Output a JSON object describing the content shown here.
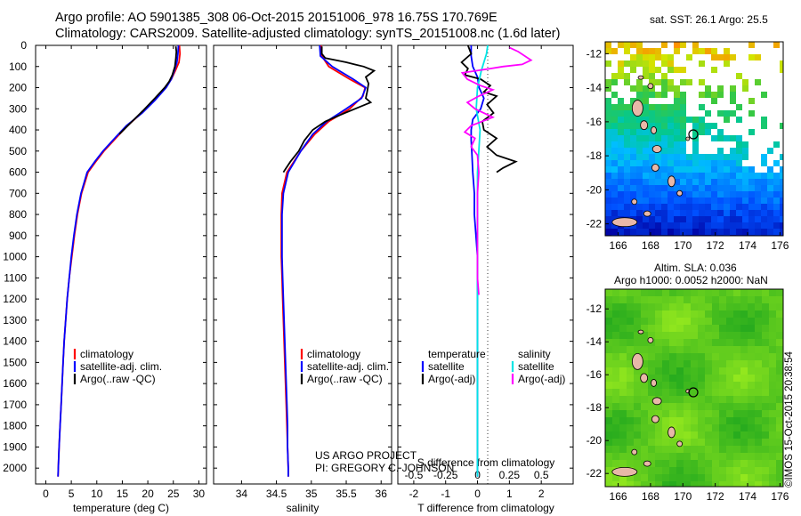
{
  "header": {
    "line1": "Argo profile: AO 5901385_308 06-Oct-2015 20151006_978 16.75S 170.769E",
    "line2": "Climatology: CARS2009. Satellite-adjusted climatology: synTS_20151008.nc (1.6d later)"
  },
  "map_top": {
    "title": "sat. SST: 26.1  Argo: 25.5",
    "xticks": [
      "166",
      "168",
      "170",
      "172",
      "174",
      "176"
    ],
    "yticks": [
      "-12",
      "-14",
      "-16",
      "-18",
      "-20",
      "-22"
    ]
  },
  "map_bottom": {
    "title_line1": "Altim. SLA: 0.036",
    "title_line2": "Argo h1000: 0.0052 h2000: NaN",
    "xticks": [
      "166",
      "168",
      "170",
      "172",
      "174",
      "176"
    ],
    "yticks": [
      "-12",
      "-14",
      "-16",
      "-18",
      "-20",
      "-22"
    ]
  },
  "credit": {
    "line1": "US ARGO PROJECT",
    "line2": "PI: GREGORY C. JOHNSON"
  },
  "stamp": "©IMOS 15-Oct-2015 20:38:54",
  "colors": {
    "climatology": "#ff0000",
    "satellite": "#0000ff",
    "argo": "#000000",
    "sal_sat": "#00e5e5",
    "sal_argo": "#ff00ff"
  },
  "chart_data": [
    {
      "type": "line",
      "xlabel": "temperature (deg C)",
      "ylabel": "",
      "xlim": [
        -2,
        31.5
      ],
      "ylim": [
        2075,
        0
      ],
      "xticks": [
        "0",
        "5",
        "10",
        "15",
        "20",
        "25",
        "30"
      ],
      "yticks": [
        "0",
        "100",
        "200",
        "300",
        "400",
        "500",
        "600",
        "700",
        "800",
        "900",
        "1000",
        "1100",
        "1200",
        "1300",
        "1400",
        "1500",
        "1600",
        "1700",
        "1800",
        "1900",
        "2000"
      ],
      "legend": [
        "climatology",
        "satellite-adj. clim.",
        "Argo(..raw -QC)"
      ],
      "series": [
        {
          "name": "climatology",
          "points": [
            [
              26.2,
              0
            ],
            [
              26.3,
              40
            ],
            [
              26.1,
              80
            ],
            [
              25.4,
              120
            ],
            [
              24.6,
              160
            ],
            [
              23.5,
              200
            ],
            [
              21.2,
              260
            ],
            [
              18.8,
              320
            ],
            [
              16,
              380
            ],
            [
              13.7,
              440
            ],
            [
              11.4,
              500
            ],
            [
              9.8,
              550
            ],
            [
              8.3,
              600
            ],
            [
              7,
              700
            ],
            [
              6.2,
              800
            ],
            [
              5.6,
              900
            ],
            [
              5.1,
              1000
            ],
            [
              4.6,
              1100
            ],
            [
              4.2,
              1200
            ],
            [
              3.9,
              1300
            ],
            [
              3.6,
              1400
            ],
            [
              3.4,
              1500
            ],
            [
              3.2,
              1600
            ],
            [
              3,
              1700
            ],
            [
              2.8,
              1800
            ],
            [
              2.6,
              1900
            ],
            [
              2.45,
              2000
            ],
            [
              2.4,
              2040
            ]
          ]
        },
        {
          "name": "satellite-adj. clim.",
          "points": [
            [
              26,
              0
            ],
            [
              25.9,
              40
            ],
            [
              25.7,
              80
            ],
            [
              25.2,
              120
            ],
            [
              24.6,
              160
            ],
            [
              23.6,
              200
            ],
            [
              21.4,
              260
            ],
            [
              18.9,
              320
            ],
            [
              15.8,
              380
            ],
            [
              13.5,
              440
            ],
            [
              11.2,
              500
            ],
            [
              9.6,
              550
            ],
            [
              8.1,
              600
            ],
            [
              6.9,
              700
            ],
            [
              6.1,
              800
            ],
            [
              5.5,
              900
            ],
            [
              5,
              1000
            ],
            [
              4.6,
              1100
            ],
            [
              4.2,
              1200
            ],
            [
              3.9,
              1300
            ],
            [
              3.6,
              1400
            ],
            [
              3.4,
              1500
            ],
            [
              3.2,
              1600
            ],
            [
              3,
              1700
            ],
            [
              2.8,
              1800
            ],
            [
              2.6,
              1900
            ],
            [
              2.45,
              2000
            ],
            [
              2.4,
              2040
            ]
          ]
        },
        {
          "name": "Argo(..raw -QC)",
          "points": [
            [
              25.5,
              5
            ],
            [
              25.6,
              30
            ],
            [
              25.5,
              60
            ],
            [
              25.3,
              100
            ],
            [
              24.8,
              140
            ],
            [
              24.2,
              170
            ],
            [
              23.3,
              200
            ],
            [
              21.4,
              250
            ],
            [
              19,
              310
            ],
            [
              16.5,
              370
            ],
            [
              14.4,
              420
            ]
          ]
        }
      ]
    },
    {
      "type": "line",
      "xlabel": "salinity",
      "ylabel": "",
      "xlim": [
        33.6,
        36.15
      ],
      "ylim": [
        2075,
        0
      ],
      "xticks": [
        "34",
        "34.5",
        "35",
        "35.5",
        "36"
      ],
      "legend": [
        "climatology",
        "satellite-adj. clim.",
        "Argo(..raw -QC)"
      ],
      "series": [
        {
          "name": "climatology",
          "points": [
            [
              35.14,
              0
            ],
            [
              35.15,
              50
            ],
            [
              35.25,
              100
            ],
            [
              35.55,
              160
            ],
            [
              35.77,
              200
            ],
            [
              35.74,
              240
            ],
            [
              35.55,
              300
            ],
            [
              35.25,
              360
            ],
            [
              35.05,
              420
            ],
            [
              34.85,
              500
            ],
            [
              34.65,
              600
            ],
            [
              34.58,
              700
            ],
            [
              34.57,
              800
            ],
            [
              34.57,
              900
            ],
            [
              34.57,
              1000
            ],
            [
              34.58,
              1100
            ],
            [
              34.59,
              1200
            ],
            [
              34.6,
              1300
            ],
            [
              34.61,
              1400
            ],
            [
              34.62,
              1500
            ],
            [
              34.63,
              1600
            ],
            [
              34.64,
              1700
            ],
            [
              34.65,
              1800
            ],
            [
              34.66,
              1900
            ],
            [
              34.67,
              2000
            ],
            [
              34.67,
              2040
            ]
          ]
        },
        {
          "name": "satellite-adj. clim.",
          "points": [
            [
              35.12,
              0
            ],
            [
              35.13,
              50
            ],
            [
              35.3,
              100
            ],
            [
              35.6,
              160
            ],
            [
              35.78,
              200
            ],
            [
              35.72,
              250
            ],
            [
              35.5,
              300
            ],
            [
              35.22,
              360
            ],
            [
              35.02,
              420
            ],
            [
              34.85,
              500
            ],
            [
              34.67,
              600
            ],
            [
              34.6,
              700
            ],
            [
              34.58,
              800
            ],
            [
              34.58,
              900
            ],
            [
              34.58,
              1000
            ],
            [
              34.59,
              1100
            ],
            [
              34.6,
              1200
            ],
            [
              34.61,
              1300
            ],
            [
              34.62,
              1400
            ],
            [
              34.63,
              1500
            ],
            [
              34.64,
              1600
            ],
            [
              34.65,
              1700
            ],
            [
              34.66,
              1800
            ],
            [
              34.66,
              1900
            ],
            [
              34.67,
              2000
            ],
            [
              34.67,
              2040
            ]
          ]
        },
        {
          "name": "Argo(..raw -QC)",
          "points": [
            [
              35.15,
              5
            ],
            [
              35.15,
              40
            ],
            [
              35.2,
              60
            ],
            [
              35.35,
              70
            ],
            [
              35.5,
              80
            ],
            [
              35.62,
              90
            ],
            [
              35.75,
              100
            ],
            [
              35.9,
              120
            ],
            [
              35.78,
              150
            ],
            [
              35.82,
              180
            ],
            [
              35.8,
              220
            ],
            [
              35.78,
              250
            ],
            [
              35.85,
              270
            ],
            [
              35.7,
              290
            ],
            [
              35.48,
              320
            ],
            [
              35.2,
              360
            ],
            [
              35.02,
              400
            ],
            [
              34.9,
              450
            ],
            [
              34.82,
              500
            ],
            [
              34.7,
              550
            ],
            [
              34.6,
              600
            ]
          ]
        }
      ]
    },
    {
      "type": "line",
      "xlabel": "T difference from climatology",
      "xlabel_top": "S difference from climatology",
      "xlim": [
        -2.5,
        3
      ],
      "ylim": [
        2075,
        0
      ],
      "xticks": [
        "-2",
        "-1",
        "0",
        "1",
        "2"
      ],
      "xticks_top": [
        "-0.5",
        "-0.25",
        "0",
        "0.25",
        "0.5"
      ],
      "legend": [
        "temperature",
        "salinity",
        "satellite",
        "Argo(-adj)",
        "satellite",
        "Argo(-adj)"
      ],
      "series": [
        {
          "name": "temperature satellite",
          "axis": "T",
          "points": [
            [
              -0.2,
              0
            ],
            [
              -0.2,
              50
            ],
            [
              -0.15,
              100
            ],
            [
              0,
              150
            ],
            [
              0.05,
              200
            ],
            [
              0.2,
              250
            ],
            [
              0.1,
              300
            ],
            [
              -0.15,
              350
            ],
            [
              -0.2,
              400
            ],
            [
              -0.2,
              450
            ],
            [
              -0.18,
              500
            ],
            [
              -0.15,
              600
            ],
            [
              -0.1,
              700
            ],
            [
              -0.1,
              800
            ],
            [
              -0.05,
              900
            ],
            [
              0,
              1000
            ],
            [
              0,
              1200
            ],
            [
              0,
              1500
            ],
            [
              0,
              1800
            ],
            [
              0,
              2040
            ]
          ]
        },
        {
          "name": "temperature Argo(-adj)",
          "axis": "T",
          "points": [
            [
              -0.3,
              0
            ],
            [
              -0.2,
              40
            ],
            [
              -0.5,
              80
            ],
            [
              -0.3,
              110
            ],
            [
              -0.4,
              140
            ],
            [
              0.1,
              160
            ],
            [
              0.4,
              190
            ],
            [
              0.2,
              220
            ],
            [
              0.6,
              240
            ],
            [
              0.3,
              280
            ],
            [
              0.5,
              320
            ],
            [
              0.15,
              360
            ],
            [
              0.2,
              400
            ],
            [
              0.6,
              440
            ],
            [
              0.3,
              480
            ],
            [
              0.6,
              520
            ],
            [
              1.2,
              550
            ],
            [
              0.8,
              580
            ],
            [
              0.6,
              600
            ]
          ]
        },
        {
          "name": "salinity satellite",
          "axis": "S",
          "points": [
            [
              0.08,
              0
            ],
            [
              0.07,
              40
            ],
            [
              0.05,
              80
            ],
            [
              0.03,
              120
            ],
            [
              0,
              200
            ],
            [
              -0.01,
              300
            ],
            [
              0.02,
              400
            ],
            [
              0.01,
              500
            ],
            [
              0,
              600
            ],
            [
              0,
              800
            ],
            [
              0,
              1000
            ],
            [
              0,
              1300
            ],
            [
              0,
              1600
            ],
            [
              0,
              1900
            ],
            [
              0,
              2040
            ]
          ]
        },
        {
          "name": "salinity Argo(-adj)",
          "axis": "S",
          "points": [
            [
              0.25,
              10
            ],
            [
              0.32,
              30
            ],
            [
              0.42,
              70
            ],
            [
              0.35,
              90
            ],
            [
              0.2,
              100
            ],
            [
              0.1,
              110
            ],
            [
              -0.12,
              130
            ],
            [
              -0.08,
              160
            ],
            [
              0.02,
              190
            ],
            [
              0.12,
              210
            ],
            [
              0.01,
              240
            ],
            [
              -0.08,
              270
            ],
            [
              -0.02,
              300
            ],
            [
              0.12,
              340
            ],
            [
              -0.05,
              380
            ],
            [
              -0.1,
              410
            ],
            [
              -0.02,
              440
            ],
            [
              -0.05,
              480
            ],
            [
              0,
              520
            ],
            [
              0.01,
              600
            ],
            [
              0,
              700
            ],
            [
              0,
              900
            ],
            [
              0,
              1100
            ],
            [
              0.01,
              1180
            ]
          ]
        }
      ]
    }
  ]
}
